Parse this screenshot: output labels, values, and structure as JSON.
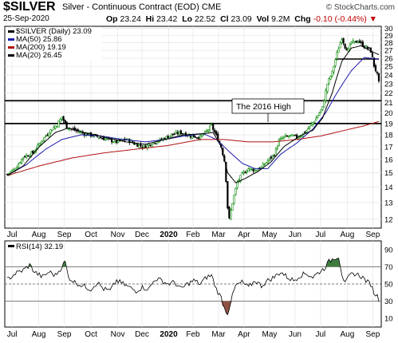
{
  "header": {
    "symbol": "$SILVER",
    "description": "Silver - Continuous Contract (EOD)",
    "exchange": "CME",
    "brand": "© StockCharts.com",
    "date": "25-Sep-2020",
    "open_label": "Op",
    "open": "23.24",
    "high_label": "Hi",
    "high": "23.42",
    "low_label": "Lo",
    "low": "22.52",
    "close_label": "Cl",
    "close": "23.09",
    "vol_label": "Vol",
    "vol": "9.2M",
    "chg_label": "Chg",
    "chg": "-0.10 (-0.44%)",
    "chg_arrow": "▼"
  },
  "legend": {
    "price": "$SILVER (Daily) 23.09",
    "ma50": "MA(50) 25.86",
    "ma200": "MA(200) 19.19",
    "ma20": "MA(20) 26.45"
  },
  "annotation": "The 2016 High",
  "rsi_legend": "RSI(14) 32.19",
  "colors": {
    "up": "#0b8a0b",
    "down": "#000000",
    "ma50": "#1b1bab",
    "ma200": "#b01010",
    "ma20": "#000000",
    "rsi_ob": "#3d7a3d",
    "rsi_os": "#8a4a3a"
  },
  "chart_data": [
    {
      "type": "candlestick",
      "title": "$SILVER (Daily) 23.09",
      "x_labels": [
        "Jul",
        "Aug",
        "Sep",
        "Oct",
        "Nov",
        "Dec",
        "2020",
        "Feb",
        "Mar",
        "Apr",
        "May",
        "Jun",
        "Jul",
        "Aug",
        "Sep"
      ],
      "y_ticks": [
        12,
        13,
        14,
        15,
        16,
        17,
        18,
        19,
        20,
        21,
        22,
        23,
        24,
        25,
        26,
        27,
        28,
        29,
        30
      ],
      "ylim": [
        11.5,
        30.3
      ],
      "scale": "log",
      "grid": true,
      "horizontal_lines": [
        21.2,
        19.0
      ],
      "resistance_line": 25.9,
      "series": [
        {
          "name": "$SILVER",
          "close_path": [
            [
              0,
              14.9
            ],
            [
              5,
              15.3
            ],
            [
              10,
              16.2
            ],
            [
              16,
              16.5
            ],
            [
              22,
              17.6
            ],
            [
              27,
              18.4
            ],
            [
              31,
              18.9
            ],
            [
              34,
              19.6
            ],
            [
              37,
              18.7
            ],
            [
              42,
              18.4
            ],
            [
              48,
              18.1
            ],
            [
              55,
              17.9
            ],
            [
              62,
              17.6
            ],
            [
              68,
              17.4
            ],
            [
              74,
              17.6
            ],
            [
              80,
              17.2
            ],
            [
              85,
              17.0
            ],
            [
              90,
              17.3
            ],
            [
              96,
              17.6
            ],
            [
              102,
              18.0
            ],
            [
              108,
              18.2
            ],
            [
              114,
              17.9
            ],
            [
              120,
              17.8
            ],
            [
              124,
              18.3
            ],
            [
              127,
              18.8
            ],
            [
              130,
              17.9
            ],
            [
              133,
              17.0
            ],
            [
              135,
              15.9
            ],
            [
              136,
              14.5
            ],
            [
              137,
              12.7
            ],
            [
              138,
              12.0
            ],
            [
              140,
              13.0
            ],
            [
              143,
              14.3
            ],
            [
              146,
              14.9
            ],
            [
              150,
              15.3
            ],
            [
              154,
              15.2
            ],
            [
              158,
              15.4
            ],
            [
              162,
              15.9
            ],
            [
              166,
              16.4
            ],
            [
              169,
              17.5
            ],
            [
              172,
              17.8
            ],
            [
              176,
              17.9
            ],
            [
              180,
              17.8
            ],
            [
              184,
              18.1
            ],
            [
              188,
              18.7
            ],
            [
              192,
              19.5
            ],
            [
              196,
              20.5
            ],
            [
              199,
              23.0
            ],
            [
              202,
              24.3
            ],
            [
              205,
              26.6
            ],
            [
              208,
              28.7
            ],
            [
              210,
              27.5
            ],
            [
              212,
              27.0
            ],
            [
              214,
              28.1
            ],
            [
              216,
              28.0
            ],
            [
              218,
              28.3
            ],
            [
              220,
              27.9
            ],
            [
              222,
              27.5
            ],
            [
              224,
              27.3
            ],
            [
              226,
              26.9
            ],
            [
              228,
              25.1
            ],
            [
              230,
              24.0
            ],
            [
              231,
              23.1
            ]
          ]
        },
        {
          "name": "MA(50)",
          "path": [
            [
              0,
              14.8
            ],
            [
              12,
              15.6
            ],
            [
              24,
              16.8
            ],
            [
              34,
              17.6
            ],
            [
              46,
              18.0
            ],
            [
              58,
              17.9
            ],
            [
              72,
              17.6
            ],
            [
              86,
              17.4
            ],
            [
              98,
              17.6
            ],
            [
              110,
              17.9
            ],
            [
              122,
              18.1
            ],
            [
              130,
              17.6
            ],
            [
              138,
              16.6
            ],
            [
              146,
              15.7
            ],
            [
              154,
              15.3
            ],
            [
              162,
              15.3
            ],
            [
              170,
              16.4
            ],
            [
              180,
              17.3
            ],
            [
              190,
              18.5
            ],
            [
              198,
              20.0
            ],
            [
              206,
              22.3
            ],
            [
              214,
              24.5
            ],
            [
              222,
              26.1
            ],
            [
              231,
              25.86
            ]
          ]
        },
        {
          "name": "MA(200)",
          "path": [
            [
              0,
              14.8
            ],
            [
              20,
              15.5
            ],
            [
              40,
              16.1
            ],
            [
              60,
              16.5
            ],
            [
              80,
              16.8
            ],
            [
              100,
              17.1
            ],
            [
              120,
              17.6
            ],
            [
              135,
              17.6
            ],
            [
              150,
              17.4
            ],
            [
              165,
              17.4
            ],
            [
              180,
              17.6
            ],
            [
              195,
              17.9
            ],
            [
              210,
              18.4
            ],
            [
              222,
              18.8
            ],
            [
              231,
              19.19
            ]
          ]
        },
        {
          "name": "MA(20)",
          "path": [
            [
              0,
              14.8
            ],
            [
              10,
              15.5
            ],
            [
              20,
              17.0
            ],
            [
              30,
              18.2
            ],
            [
              38,
              18.6
            ],
            [
              48,
              18.2
            ],
            [
              60,
              17.8
            ],
            [
              74,
              17.4
            ],
            [
              86,
              17.2
            ],
            [
              98,
              17.6
            ],
            [
              110,
              18.0
            ],
            [
              122,
              18.1
            ],
            [
              128,
              18.2
            ],
            [
              133,
              17.0
            ],
            [
              137,
              15.0
            ],
            [
              142,
              14.3
            ],
            [
              148,
              14.6
            ],
            [
              156,
              15.1
            ],
            [
              164,
              15.8
            ],
            [
              172,
              17.0
            ],
            [
              182,
              17.9
            ],
            [
              190,
              18.4
            ],
            [
              196,
              19.5
            ],
            [
              202,
              22.0
            ],
            [
              208,
              25.6
            ],
            [
              214,
              27.3
            ],
            [
              220,
              27.6
            ],
            [
              226,
              26.9
            ],
            [
              231,
              26.45
            ]
          ]
        }
      ]
    },
    {
      "type": "line",
      "title": "RSI(14) 32.19",
      "y_ticks": [
        10,
        30,
        50,
        70,
        90
      ],
      "ylim": [
        0,
        100
      ],
      "reference_lines": [
        70,
        50,
        30
      ],
      "series": [
        {
          "name": "RSI(14)",
          "path": [
            [
              0,
              55
            ],
            [
              5,
              62
            ],
            [
              10,
              66
            ],
            [
              14,
              72
            ],
            [
              17,
              64
            ],
            [
              22,
              58
            ],
            [
              26,
              64
            ],
            [
              30,
              60
            ],
            [
              34,
              70
            ],
            [
              36,
              76
            ],
            [
              38,
              58
            ],
            [
              42,
              52
            ],
            [
              47,
              48
            ],
            [
              52,
              44
            ],
            [
              56,
              52
            ],
            [
              60,
              44
            ],
            [
              64,
              42
            ],
            [
              68,
              54
            ],
            [
              72,
              50
            ],
            [
              76,
              46
            ],
            [
              80,
              42
            ],
            [
              84,
              46
            ],
            [
              88,
              44
            ],
            [
              92,
              56
            ],
            [
              96,
              54
            ],
            [
              100,
              50
            ],
            [
              104,
              52
            ],
            [
              108,
              44
            ],
            [
              112,
              50
            ],
            [
              116,
              54
            ],
            [
              120,
              50
            ],
            [
              124,
              58
            ],
            [
              127,
              60
            ],
            [
              130,
              44
            ],
            [
              133,
              34
            ],
            [
              135,
              22
            ],
            [
              137,
              16
            ],
            [
              139,
              30
            ],
            [
              142,
              48
            ],
            [
              146,
              52
            ],
            [
              150,
              46
            ],
            [
              154,
              54
            ],
            [
              158,
              48
            ],
            [
              162,
              54
            ],
            [
              166,
              58
            ],
            [
              170,
              64
            ],
            [
              174,
              58
            ],
            [
              178,
              54
            ],
            [
              182,
              60
            ],
            [
              186,
              62
            ],
            [
              190,
              58
            ],
            [
              194,
              64
            ],
            [
              197,
              68
            ],
            [
              200,
              76
            ],
            [
              203,
              80
            ],
            [
              206,
              82
            ],
            [
              208,
              62
            ],
            [
              210,
              50
            ],
            [
              213,
              60
            ],
            [
              216,
              62
            ],
            [
              219,
              60
            ],
            [
              222,
              56
            ],
            [
              224,
              52
            ],
            [
              226,
              50
            ],
            [
              228,
              40
            ],
            [
              230,
              36
            ],
            [
              231,
              32.19
            ]
          ]
        }
      ]
    }
  ]
}
